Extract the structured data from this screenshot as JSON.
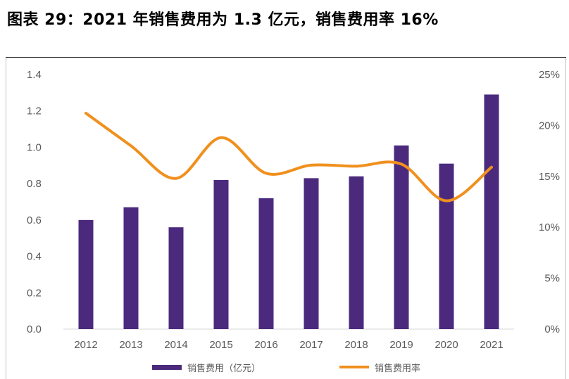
{
  "title": "图表 29：2021 年销售费用为 1.3 亿元，销售费用率 16%",
  "chart_data": {
    "type": "bar",
    "categories": [
      "2012",
      "2013",
      "2014",
      "2015",
      "2016",
      "2017",
      "2018",
      "2019",
      "2020",
      "2021"
    ],
    "series": [
      {
        "name": "销售费用（亿元）",
        "type": "bar",
        "axis": "left",
        "color": "#4b2a7e",
        "values": [
          0.6,
          0.67,
          0.56,
          0.82,
          0.72,
          0.83,
          0.84,
          1.01,
          0.91,
          1.29
        ]
      },
      {
        "name": "销售费用率",
        "type": "line",
        "axis": "right",
        "color": "#f0901e",
        "values": [
          21.2,
          18.0,
          14.8,
          18.8,
          15.3,
          16.1,
          16.0,
          16.2,
          12.6,
          15.9
        ]
      }
    ],
    "y_left": {
      "range": [
        0,
        1.4
      ],
      "ticks": [
        "0.0",
        "0.2",
        "0.4",
        "0.6",
        "0.8",
        "1.0",
        "1.2",
        "1.4"
      ]
    },
    "y_right": {
      "range": [
        0,
        25
      ],
      "ticks": [
        "0%",
        "5%",
        "10%",
        "15%",
        "20%",
        "25%"
      ]
    },
    "legend_position": "bottom",
    "grid": false
  }
}
